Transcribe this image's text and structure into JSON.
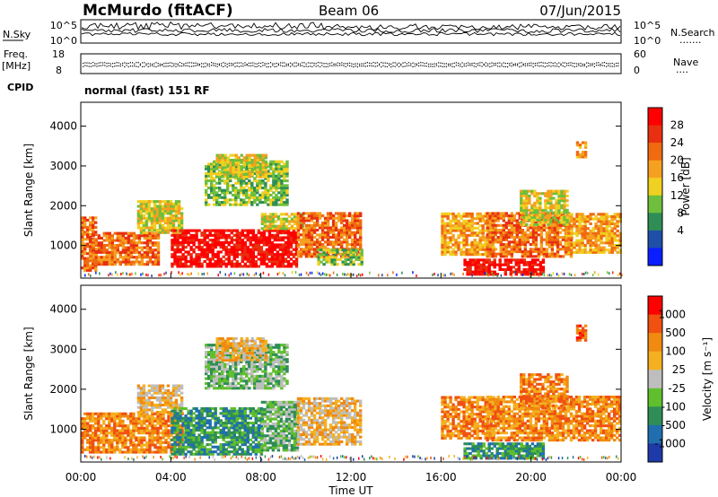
{
  "header": {
    "station": "McMurdo (fitACF)",
    "beam": "Beam 06",
    "date": "07/Jun/2015"
  },
  "strips": {
    "noise_left_label": "N.Sky",
    "noise_right_label": "N.Search",
    "noise_right_dots": "·······",
    "noise_top_tick": "10^5",
    "noise_bottom_tick": "10^0",
    "freq_label": "Freq.",
    "freq_unit": "[MHz]",
    "freq_top_tick": "18",
    "freq_bottom_tick": "8",
    "nave_label": "Nave",
    "nave_dots": "····",
    "nave_top_tick": "60",
    "nave_bottom_tick": "0",
    "cpid_label": "CPID",
    "cpid_value": "normal (fast) 151 RF"
  },
  "chart_data": [
    {
      "type": "heatmap",
      "panel": "power",
      "ylabel": "Slant Range [km]",
      "yticks": [
        1000,
        2000,
        3000,
        4000
      ],
      "ylim": [
        180,
        4600
      ],
      "xlim": [
        0,
        24
      ],
      "colorbar": {
        "label": "Power [dB]",
        "ticks": [
          "28",
          "24",
          "20",
          "16",
          "12",
          "8",
          "4"
        ],
        "colors": [
          "#0a1eff",
          "#1f4fa8",
          "#2e8e56",
          "#6fbf3c",
          "#f0d020",
          "#f5a020",
          "#f06a10",
          "#e83010",
          "#ff0000"
        ]
      },
      "regions": [
        {
          "t0": 0.0,
          "t1": 0.7,
          "r0": 350,
          "r1": 1700,
          "level": 6
        },
        {
          "t0": 0.5,
          "t1": 3.5,
          "r0": 500,
          "r1": 1300,
          "level": 6
        },
        {
          "t0": 2.5,
          "t1": 4.5,
          "r0": 1300,
          "r1": 2100,
          "level": 4
        },
        {
          "t0": 4.0,
          "t1": 9.6,
          "r0": 450,
          "r1": 1400,
          "level": 8
        },
        {
          "t0": 8.0,
          "t1": 9.8,
          "r0": 1400,
          "r1": 1800,
          "level": 4
        },
        {
          "t0": 9.6,
          "t1": 12.4,
          "r0": 700,
          "r1": 1800,
          "level": 6
        },
        {
          "t0": 10.5,
          "t1": 12.5,
          "r0": 500,
          "r1": 900,
          "level": 3
        },
        {
          "t0": 5.5,
          "t1": 9.2,
          "r0": 2000,
          "r1": 3100,
          "level": 3
        },
        {
          "t0": 6.0,
          "t1": 8.2,
          "r0": 2700,
          "r1": 3300,
          "level": 4
        },
        {
          "t0": 16.0,
          "t1": 18.4,
          "r0": 750,
          "r1": 1800,
          "level": 5
        },
        {
          "t0": 17.0,
          "t1": 20.5,
          "r0": 250,
          "r1": 650,
          "level": 8
        },
        {
          "t0": 18.0,
          "t1": 21.8,
          "r0": 700,
          "r1": 1800,
          "level": 6
        },
        {
          "t0": 21.5,
          "t1": 24.0,
          "r0": 800,
          "r1": 1800,
          "level": 5
        },
        {
          "t0": 19.5,
          "t1": 21.6,
          "r0": 1500,
          "r1": 2400,
          "level": 4
        },
        {
          "t0": 22.0,
          "t1": 22.4,
          "r0": 3200,
          "r1": 3600,
          "level": 5
        }
      ]
    },
    {
      "type": "heatmap",
      "panel": "velocity",
      "ylabel": "Slant Range [km]",
      "xlabel": "Time UT",
      "yticks": [
        1000,
        2000,
        3000,
        4000
      ],
      "ylim": [
        180,
        4600
      ],
      "xlim": [
        0,
        24
      ],
      "xticks": [
        "00:00",
        "04:00",
        "08:00",
        "12:00",
        "16:00",
        "20:00",
        "00:00"
      ],
      "colorbar": {
        "label": "Velocity [m s⁻¹]",
        "ticks": [
          "1000",
          "500",
          "100",
          "25",
          "-25",
          "-100",
          "-500",
          "-1000"
        ],
        "colors": [
          "#1e3aa8",
          "#1f6fb0",
          "#2e8e56",
          "#5fbf2c",
          "#bebebe",
          "#f5b020",
          "#f08a10",
          "#f05010",
          "#ff0000"
        ]
      },
      "regions": [
        {
          "t0": 0.0,
          "t1": 4.5,
          "r0": 400,
          "r1": 1400,
          "level": 6
        },
        {
          "t0": 2.5,
          "t1": 4.5,
          "r0": 1400,
          "r1": 2100,
          "level": 5
        },
        {
          "t0": 4.0,
          "t1": 8.0,
          "r0": 350,
          "r1": 1500,
          "level": 2
        },
        {
          "t0": 8.0,
          "t1": 9.6,
          "r0": 450,
          "r1": 1700,
          "level": 3
        },
        {
          "t0": 9.6,
          "t1": 12.4,
          "r0": 600,
          "r1": 1800,
          "level": 5
        },
        {
          "t0": 5.5,
          "t1": 9.2,
          "r0": 2000,
          "r1": 3100,
          "level": 3
        },
        {
          "t0": 6.0,
          "t1": 8.2,
          "r0": 2700,
          "r1": 3300,
          "level": 5
        },
        {
          "t0": 16.0,
          "t1": 18.4,
          "r0": 750,
          "r1": 1800,
          "level": 6
        },
        {
          "t0": 17.0,
          "t1": 20.5,
          "r0": 250,
          "r1": 650,
          "level": 2
        },
        {
          "t0": 18.0,
          "t1": 24.0,
          "r0": 700,
          "r1": 1800,
          "level": 6
        },
        {
          "t0": 19.5,
          "t1": 21.6,
          "r0": 1500,
          "r1": 2400,
          "level": 6
        },
        {
          "t0": 22.0,
          "t1": 22.4,
          "r0": 3200,
          "r1": 3600,
          "level": 7
        }
      ]
    }
  ]
}
